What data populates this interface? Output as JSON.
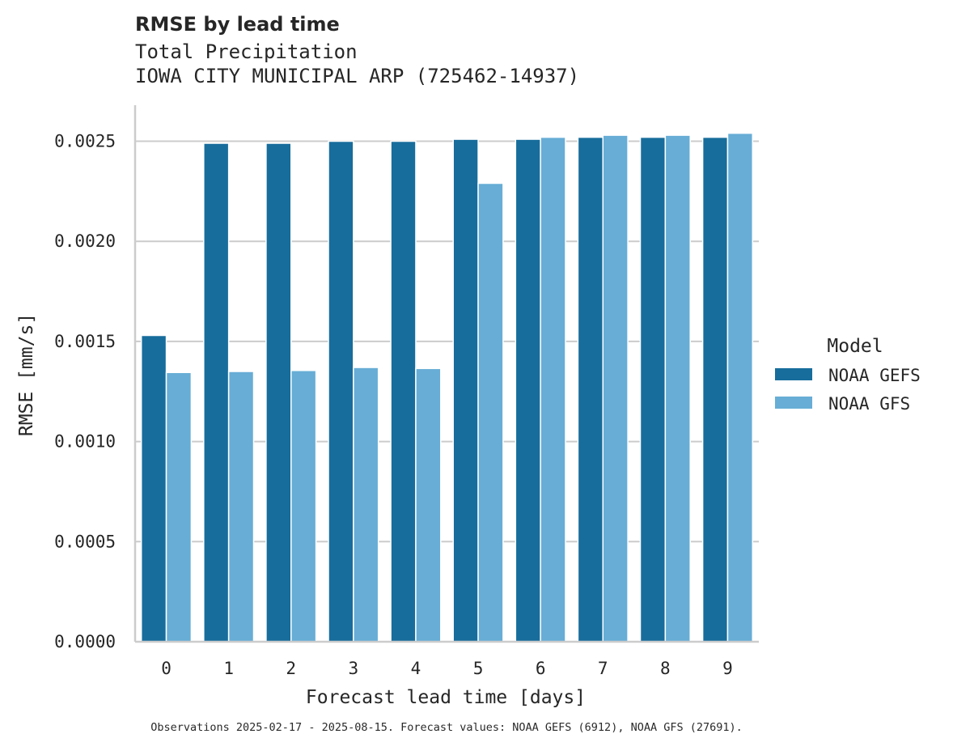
{
  "chart_data": {
    "type": "bar",
    "title": "RMSE by lead time",
    "subtitle_lines": [
      "Total Precipitation",
      "IOWA CITY MUNICIPAL ARP (725462-14937)"
    ],
    "xlabel": "Forecast lead time [days]",
    "ylabel": "RMSE [mm/s]",
    "categories": [
      "0",
      "1",
      "2",
      "3",
      "4",
      "5",
      "6",
      "7",
      "8",
      "9"
    ],
    "series": [
      {
        "name": "NOAA GEFS",
        "color": "#176D9C",
        "values": [
          0.00153,
          0.00249,
          0.00249,
          0.0025,
          0.0025,
          0.00251,
          0.00251,
          0.00252,
          0.00252,
          0.00252
        ]
      },
      {
        "name": "NOAA GFS",
        "color": "#67ADD6",
        "values": [
          0.001345,
          0.00135,
          0.001355,
          0.00137,
          0.001365,
          0.00229,
          0.00252,
          0.00253,
          0.00253,
          0.00254
        ]
      }
    ],
    "ylim": [
      0,
      0.00268
    ],
    "yticks": [
      0.0,
      0.0005,
      0.001,
      0.0015,
      0.002,
      0.0025
    ],
    "ytick_labels": [
      "0.0000",
      "0.0005",
      "0.0010",
      "0.0015",
      "0.0020",
      "0.0025"
    ],
    "grid": "horizontal",
    "legend": {
      "title": "Model",
      "placement": "right-outside"
    },
    "footer": "Observations 2025-02-17 - 2025-08-15. Forecast values: NOAA GEFS (6912), NOAA GFS (27691)."
  }
}
